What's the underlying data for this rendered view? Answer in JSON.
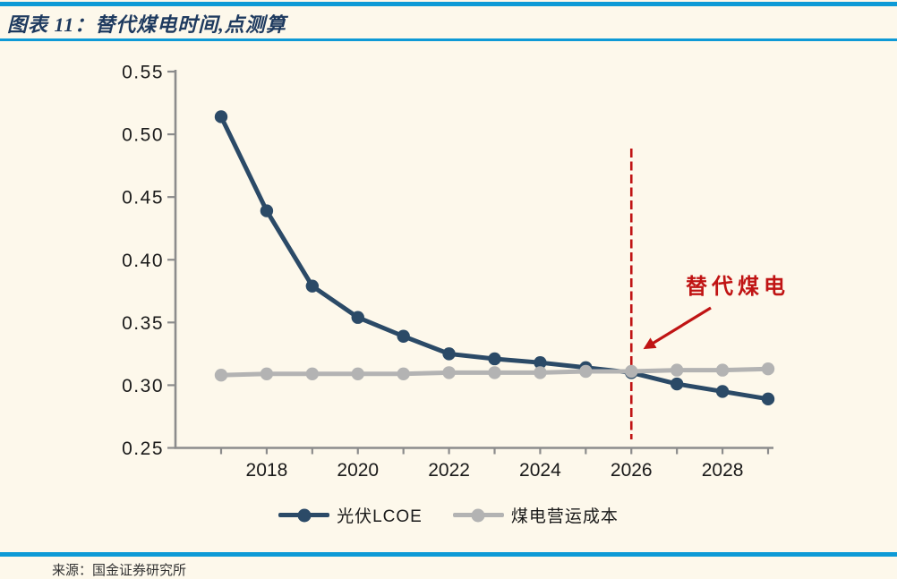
{
  "header": {
    "title": "图表 11：替代煤电时间,点测算"
  },
  "colors": {
    "accent_blue": "#0E9AD6",
    "title_navy": "#1E3A5F",
    "axis_gray": "#8C8C8C",
    "tick_text": "#1a1a1a",
    "pv_navy": "#2B4A67",
    "coal_gray": "#B3B3B3",
    "annotation_red": "#C01414",
    "background_cream": "#FDF8EB"
  },
  "chart_data": {
    "type": "line",
    "title": "替代煤电时间,点测算",
    "x": [
      2017,
      2018,
      2019,
      2020,
      2021,
      2022,
      2023,
      2024,
      2025,
      2026,
      2027,
      2028,
      2029
    ],
    "x_label_ticks": [
      2018,
      2020,
      2022,
      2024,
      2026,
      2028
    ],
    "y_ticks": [
      0.25,
      0.3,
      0.35,
      0.4,
      0.45,
      0.5,
      0.55
    ],
    "ylim": [
      0.25,
      0.55
    ],
    "xlabel": "",
    "ylabel": "",
    "grid": false,
    "legend_position": "bottom",
    "series": [
      {
        "name": "光伏LCOE",
        "color": "#2B4A67",
        "values": [
          0.514,
          0.439,
          0.379,
          0.354,
          0.339,
          0.325,
          0.321,
          0.318,
          0.314,
          0.31,
          0.301,
          0.295,
          0.289
        ]
      },
      {
        "name": "煤电营运成本",
        "color": "#B3B3B3",
        "values": [
          0.308,
          0.309,
          0.309,
          0.309,
          0.309,
          0.31,
          0.31,
          0.31,
          0.311,
          0.311,
          0.312,
          0.312,
          0.313
        ]
      }
    ],
    "annotation": {
      "text": "替代煤电",
      "year": 2026,
      "color": "#C01414"
    }
  },
  "footer": {
    "source_text": "来源：国金证券研究所"
  }
}
